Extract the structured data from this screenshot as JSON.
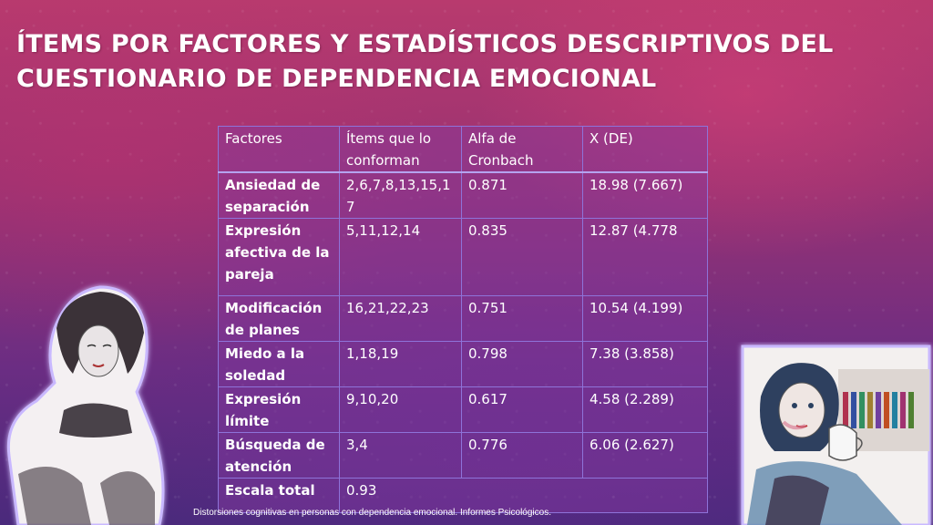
{
  "title": {
    "line1": "ÍTEMS POR FACTORES Y ESTADÍSTICOS DESCRIPTIVOS DEL",
    "line2": "CUESTIONARIO DE DEPENDENCIA EMOCIONAL"
  },
  "table": {
    "headers": [
      "Factores",
      "Ítems que lo conforman",
      "Alfa de Cronbach",
      "X (DE)"
    ],
    "rows": [
      [
        "Ansiedad de separación",
        "2,6,7,8,13,15,17",
        "0.871",
        "18.98 (7.667)"
      ],
      [
        "Expresión afectiva de la pareja",
        "5,11,12,14",
        "0.835",
        "12.87 (4.778"
      ],
      [
        "Modificación de planes",
        "16,21,22,23",
        "0.751",
        "10.54 (4.199)"
      ],
      [
        "Miedo a la soledad",
        "1,18,19",
        "0.798",
        "7.38 (3.858)"
      ],
      [
        "Expresión límite",
        "9,10,20",
        "0.617",
        "4.58 (2.289)"
      ],
      [
        "Búsqueda de atención",
        "3,4",
        "0.776",
        "6.06 (2.627)"
      ],
      [
        "Escala total",
        "0.93"
      ]
    ]
  },
  "caption": "Distorsiones cognitivas en personas con dependencia emocional. Informes Psicológicos.",
  "illustrations": {
    "left": "sketch-woman-crouching-illustration",
    "right": "sketch-woman-with-cup-illustration"
  },
  "colors": {
    "background_top": "#b83a6e",
    "background_bottom": "#4a2a7c",
    "table_border": "#8e73d9",
    "text": "#ffffff"
  }
}
